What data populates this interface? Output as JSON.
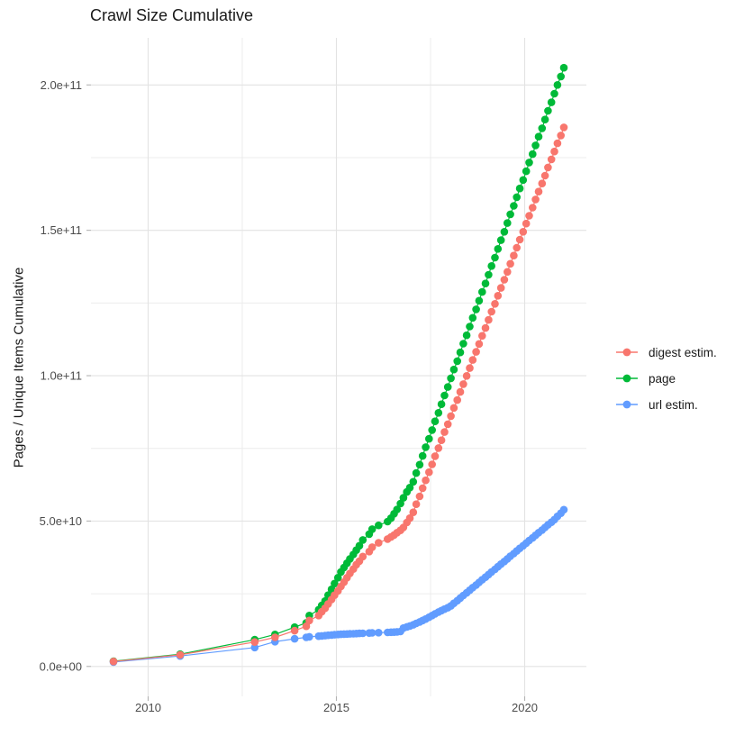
{
  "chart_data": {
    "type": "line",
    "title": "Crawl Size Cumulative",
    "xlabel": "",
    "ylabel": "Pages / Unique Items Cumulative",
    "grid": true,
    "legend_position": "right",
    "x_ticks": [
      2010,
      2015,
      2020
    ],
    "x_tick_labels": [
      "2010",
      "2015",
      "2020"
    ],
    "x_minor_ticks": [
      2012.5,
      2017.5
    ],
    "y_unit_multiplier": 1000000000.0,
    "y_ticks": [
      0,
      50,
      100,
      150,
      200
    ],
    "y_tick_labels": [
      "0.0e+00",
      "5.0e+10",
      "1.0e+11",
      "1.5e+11",
      "2.0e+11"
    ],
    "y_minor_ticks": [
      25,
      75,
      125,
      175
    ],
    "xlim": [
      2009.08,
      2021.04
    ],
    "ylim": [
      0,
      205.9
    ],
    "colors": {
      "major_grid": "#E3E3E3",
      "minor_grid": "#ECECEC",
      "tick": "#B3B3B3",
      "tick_label": "#4D4D4D",
      "text": "#1A1A1A"
    },
    "draw_order": [
      1,
      2,
      0
    ],
    "series": [
      {
        "name": "digest estim.",
        "color": "#F8766D",
        "points": [
          [
            2009.08,
            1.7
          ],
          [
            2010.85,
            4.0
          ],
          [
            2012.83,
            8.4
          ],
          [
            2013.37,
            10.0
          ],
          [
            2013.89,
            12.3
          ],
          [
            2014.2,
            13.8
          ],
          [
            2014.28,
            15.8
          ],
          [
            2014.53,
            17.5
          ],
          [
            2014.61,
            18.8
          ],
          [
            2014.7,
            20.0
          ],
          [
            2014.78,
            21.5
          ],
          [
            2014.87,
            23.0
          ],
          [
            2014.95,
            24.5
          ],
          [
            2015.04,
            26.0
          ],
          [
            2015.12,
            27.5
          ],
          [
            2015.2,
            29.0
          ],
          [
            2015.28,
            30.5
          ],
          [
            2015.36,
            32.0
          ],
          [
            2015.45,
            33.5
          ],
          [
            2015.53,
            35.0
          ],
          [
            2015.61,
            36.2
          ],
          [
            2015.7,
            37.8
          ],
          [
            2015.87,
            39.5
          ],
          [
            2015.95,
            41.0
          ],
          [
            2016.12,
            42.5
          ],
          [
            2016.36,
            43.8
          ],
          [
            2016.45,
            44.5
          ],
          [
            2016.53,
            45.2
          ],
          [
            2016.61,
            46.0
          ],
          [
            2016.7,
            46.8
          ],
          [
            2016.78,
            47.8
          ],
          [
            2016.87,
            49.5
          ],
          [
            2016.95,
            51.0
          ],
          [
            2017.04,
            53.0
          ],
          [
            2017.12,
            55.8
          ],
          [
            2017.21,
            58.5
          ],
          [
            2017.29,
            61.3
          ],
          [
            2017.37,
            64.0
          ],
          [
            2017.46,
            66.8
          ],
          [
            2017.54,
            69.5
          ],
          [
            2017.62,
            72.3
          ],
          [
            2017.71,
            75.1
          ],
          [
            2017.79,
            77.8
          ],
          [
            2017.87,
            80.6
          ],
          [
            2017.96,
            83.3
          ],
          [
            2018.04,
            86.1
          ],
          [
            2018.12,
            88.9
          ],
          [
            2018.21,
            91.6
          ],
          [
            2018.29,
            94.4
          ],
          [
            2018.37,
            97.1
          ],
          [
            2018.46,
            99.9
          ],
          [
            2018.54,
            102.6
          ],
          [
            2018.62,
            105.4
          ],
          [
            2018.71,
            108.2
          ],
          [
            2018.79,
            110.9
          ],
          [
            2018.87,
            113.7
          ],
          [
            2018.96,
            116.4
          ],
          [
            2019.04,
            119.2
          ],
          [
            2019.12,
            122.0
          ],
          [
            2019.21,
            124.7
          ],
          [
            2019.29,
            127.5
          ],
          [
            2019.37,
            130.2
          ],
          [
            2019.46,
            133.0
          ],
          [
            2019.54,
            135.7
          ],
          [
            2019.62,
            138.5
          ],
          [
            2019.71,
            141.3
          ],
          [
            2019.79,
            144.0
          ],
          [
            2019.87,
            146.8
          ],
          [
            2019.96,
            149.5
          ],
          [
            2020.04,
            152.3
          ],
          [
            2020.12,
            155.0
          ],
          [
            2020.21,
            157.8
          ],
          [
            2020.29,
            160.6
          ],
          [
            2020.37,
            163.3
          ],
          [
            2020.46,
            166.1
          ],
          [
            2020.54,
            168.8
          ],
          [
            2020.62,
            171.6
          ],
          [
            2020.71,
            174.4
          ],
          [
            2020.79,
            177.1
          ],
          [
            2020.87,
            179.9
          ],
          [
            2020.96,
            182.6
          ],
          [
            2021.04,
            185.4
          ]
        ]
      },
      {
        "name": "page",
        "color": "#00BA38",
        "points": [
          [
            2009.08,
            1.8
          ],
          [
            2010.85,
            4.2
          ],
          [
            2012.83,
            9.2
          ],
          [
            2013.37,
            11.0
          ],
          [
            2013.89,
            13.5
          ],
          [
            2014.2,
            15.0
          ],
          [
            2014.28,
            17.5
          ],
          [
            2014.53,
            19.5
          ],
          [
            2014.61,
            21.0
          ],
          [
            2014.7,
            22.5
          ],
          [
            2014.78,
            24.5
          ],
          [
            2014.87,
            26.5
          ],
          [
            2014.95,
            28.5
          ],
          [
            2015.04,
            30.5
          ],
          [
            2015.12,
            32.5
          ],
          [
            2015.2,
            34.0
          ],
          [
            2015.28,
            35.5
          ],
          [
            2015.36,
            37.0
          ],
          [
            2015.45,
            38.5
          ],
          [
            2015.53,
            40.0
          ],
          [
            2015.61,
            41.5
          ],
          [
            2015.7,
            43.5
          ],
          [
            2015.87,
            45.5
          ],
          [
            2015.95,
            47.2
          ],
          [
            2016.12,
            48.5
          ],
          [
            2016.36,
            49.8
          ],
          [
            2016.45,
            51.0
          ],
          [
            2016.53,
            52.5
          ],
          [
            2016.61,
            54.0
          ],
          [
            2016.7,
            56.0
          ],
          [
            2016.78,
            58.0
          ],
          [
            2016.87,
            60.0
          ],
          [
            2016.95,
            61.5
          ],
          [
            2017.04,
            63.5
          ],
          [
            2017.12,
            66.5
          ],
          [
            2017.21,
            69.4
          ],
          [
            2017.29,
            72.4
          ],
          [
            2017.37,
            75.4
          ],
          [
            2017.46,
            78.3
          ],
          [
            2017.54,
            81.3
          ],
          [
            2017.62,
            84.3
          ],
          [
            2017.71,
            87.2
          ],
          [
            2017.79,
            90.2
          ],
          [
            2017.87,
            93.2
          ],
          [
            2017.96,
            96.1
          ],
          [
            2018.04,
            99.1
          ],
          [
            2018.12,
            102.1
          ],
          [
            2018.21,
            105.0
          ],
          [
            2018.29,
            108.0
          ],
          [
            2018.37,
            111.0
          ],
          [
            2018.46,
            113.9
          ],
          [
            2018.54,
            116.9
          ],
          [
            2018.62,
            119.9
          ],
          [
            2018.71,
            122.8
          ],
          [
            2018.79,
            125.8
          ],
          [
            2018.87,
            128.8
          ],
          [
            2018.96,
            131.7
          ],
          [
            2019.04,
            134.7
          ],
          [
            2019.12,
            137.7
          ],
          [
            2019.21,
            140.6
          ],
          [
            2019.29,
            143.6
          ],
          [
            2019.37,
            146.6
          ],
          [
            2019.46,
            149.5
          ],
          [
            2019.54,
            152.5
          ],
          [
            2019.62,
            155.5
          ],
          [
            2019.71,
            158.4
          ],
          [
            2019.79,
            161.4
          ],
          [
            2019.87,
            164.4
          ],
          [
            2019.96,
            167.3
          ],
          [
            2020.04,
            170.3
          ],
          [
            2020.12,
            173.3
          ],
          [
            2020.21,
            176.2
          ],
          [
            2020.29,
            179.2
          ],
          [
            2020.37,
            182.2
          ],
          [
            2020.46,
            185.1
          ],
          [
            2020.54,
            188.1
          ],
          [
            2020.62,
            191.1
          ],
          [
            2020.71,
            194.0
          ],
          [
            2020.79,
            197.0
          ],
          [
            2020.87,
            200.0
          ],
          [
            2020.96,
            202.9
          ],
          [
            2021.04,
            205.9
          ]
        ]
      },
      {
        "name": "url estim.",
        "color": "#619CFF",
        "points": [
          [
            2009.08,
            1.5
          ],
          [
            2010.85,
            3.6
          ],
          [
            2012.83,
            6.5
          ],
          [
            2013.37,
            8.5
          ],
          [
            2013.89,
            9.5
          ],
          [
            2014.2,
            10.0
          ],
          [
            2014.28,
            10.2
          ],
          [
            2014.53,
            10.4
          ],
          [
            2014.61,
            10.5
          ],
          [
            2014.7,
            10.6
          ],
          [
            2014.78,
            10.7
          ],
          [
            2014.87,
            10.8
          ],
          [
            2014.95,
            10.9
          ],
          [
            2015.04,
            11.0
          ],
          [
            2015.12,
            11.05
          ],
          [
            2015.2,
            11.1
          ],
          [
            2015.28,
            11.15
          ],
          [
            2015.36,
            11.2
          ],
          [
            2015.45,
            11.25
          ],
          [
            2015.53,
            11.3
          ],
          [
            2015.61,
            11.35
          ],
          [
            2015.7,
            11.4
          ],
          [
            2015.87,
            11.5
          ],
          [
            2015.95,
            11.55
          ],
          [
            2016.12,
            11.6
          ],
          [
            2016.36,
            11.7
          ],
          [
            2016.45,
            11.75
          ],
          [
            2016.53,
            11.8
          ],
          [
            2016.61,
            11.9
          ],
          [
            2016.7,
            12.0
          ],
          [
            2016.78,
            13.2
          ],
          [
            2016.87,
            13.6
          ],
          [
            2016.95,
            13.9
          ],
          [
            2017.04,
            14.3
          ],
          [
            2017.12,
            14.8
          ],
          [
            2017.21,
            15.3
          ],
          [
            2017.29,
            15.8
          ],
          [
            2017.37,
            16.3
          ],
          [
            2017.46,
            16.9
          ],
          [
            2017.54,
            17.5
          ],
          [
            2017.62,
            18.1
          ],
          [
            2017.71,
            18.7
          ],
          [
            2017.79,
            19.2
          ],
          [
            2017.87,
            19.7
          ],
          [
            2017.96,
            20.2
          ],
          [
            2018.04,
            20.8
          ],
          [
            2018.12,
            21.7
          ],
          [
            2018.21,
            22.6
          ],
          [
            2018.29,
            23.5
          ],
          [
            2018.37,
            24.4
          ],
          [
            2018.46,
            25.3
          ],
          [
            2018.54,
            26.2
          ],
          [
            2018.62,
            27.1
          ],
          [
            2018.71,
            28.0
          ],
          [
            2018.79,
            28.9
          ],
          [
            2018.87,
            29.8
          ],
          [
            2018.96,
            30.7
          ],
          [
            2019.04,
            31.6
          ],
          [
            2019.12,
            32.5
          ],
          [
            2019.21,
            33.4
          ],
          [
            2019.29,
            34.3
          ],
          [
            2019.37,
            35.2
          ],
          [
            2019.46,
            36.1
          ],
          [
            2019.54,
            37.0
          ],
          [
            2019.62,
            37.9
          ],
          [
            2019.71,
            38.8
          ],
          [
            2019.79,
            39.7
          ],
          [
            2019.87,
            40.6
          ],
          [
            2019.96,
            41.5
          ],
          [
            2020.04,
            42.4
          ],
          [
            2020.12,
            43.3
          ],
          [
            2020.21,
            44.2
          ],
          [
            2020.29,
            45.1
          ],
          [
            2020.37,
            46.0
          ],
          [
            2020.46,
            46.9
          ],
          [
            2020.54,
            47.8
          ],
          [
            2020.62,
            48.7
          ],
          [
            2020.71,
            49.6
          ],
          [
            2020.79,
            50.5
          ],
          [
            2020.87,
            51.6
          ],
          [
            2020.96,
            52.7
          ],
          [
            2021.04,
            53.9
          ]
        ]
      }
    ]
  }
}
